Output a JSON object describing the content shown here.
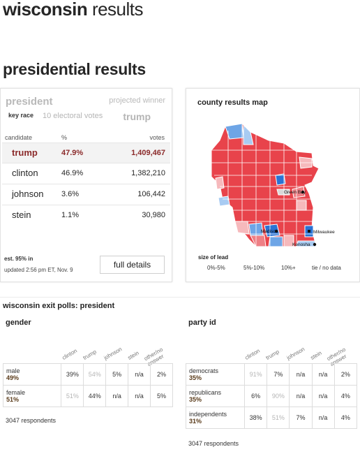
{
  "page": {
    "state": "wisconsin",
    "suffix": "results"
  },
  "section_title": "presidential results",
  "race": {
    "label": "president",
    "key_race": "key race",
    "electoral_votes": "10 electoral votes",
    "projected_label": "projected winner",
    "projected_winner": "trump",
    "headers": {
      "candidate": "candidate",
      "pct": "%",
      "votes": "votes"
    },
    "candidates": [
      {
        "name": "trump",
        "pct": "47.9%",
        "votes": "1,409,467"
      },
      {
        "name": "clinton",
        "pct": "46.9%",
        "votes": "1,382,210"
      },
      {
        "name": "johnson",
        "pct": "3.6%",
        "votes": "106,442"
      },
      {
        "name": "stein",
        "pct": "1.1%",
        "votes": "30,980"
      }
    ],
    "est_in": "est. 95% in",
    "updated": "updated 2:56 pm ET, Nov. 9",
    "full_details": "full details"
  },
  "map": {
    "title": "county results map",
    "cities": [
      "Green Bay",
      "Madison",
      "Milwaukee",
      "Kenosha"
    ],
    "lead_title": "size of lead",
    "lead_items": [
      "0%-5%",
      "5%-10%",
      "10%+",
      "tie / no data"
    ],
    "colors": {
      "rep_strong": "#e8434b",
      "rep_mid": "#ee7f85",
      "rep_light": "#f6b9bc",
      "dem_strong": "#2a73d4",
      "dem_mid": "#6ea5e6",
      "dem_light": "#a8cbf2",
      "tie": "#d8d8d8"
    }
  },
  "exit_polls": {
    "title": "wisconsin exit polls: president",
    "columns": [
      "clinton",
      "trump",
      "johnson",
      "stein",
      "other/no answer"
    ],
    "gender": {
      "label": "gender",
      "rows": [
        {
          "group": "male",
          "share": "49%",
          "values": [
            "39%",
            "54%",
            "5%",
            "n/a",
            "2%"
          ]
        },
        {
          "group": "female",
          "share": "51%",
          "values": [
            "51%",
            "44%",
            "n/a",
            "n/a",
            "5%"
          ]
        }
      ],
      "respondents": "3047 respondents"
    },
    "party": {
      "label": "party id",
      "rows": [
        {
          "group": "democrats",
          "share": "35%",
          "values": [
            "91%",
            "7%",
            "n/a",
            "n/a",
            "2%"
          ]
        },
        {
          "group": "republicans",
          "share": "35%",
          "values": [
            "6%",
            "90%",
            "n/a",
            "n/a",
            "4%"
          ]
        },
        {
          "group": "independents",
          "share": "31%",
          "values": [
            "38%",
            "51%",
            "7%",
            "n/a",
            "4%"
          ]
        }
      ],
      "respondents": "3047 respondents"
    }
  }
}
